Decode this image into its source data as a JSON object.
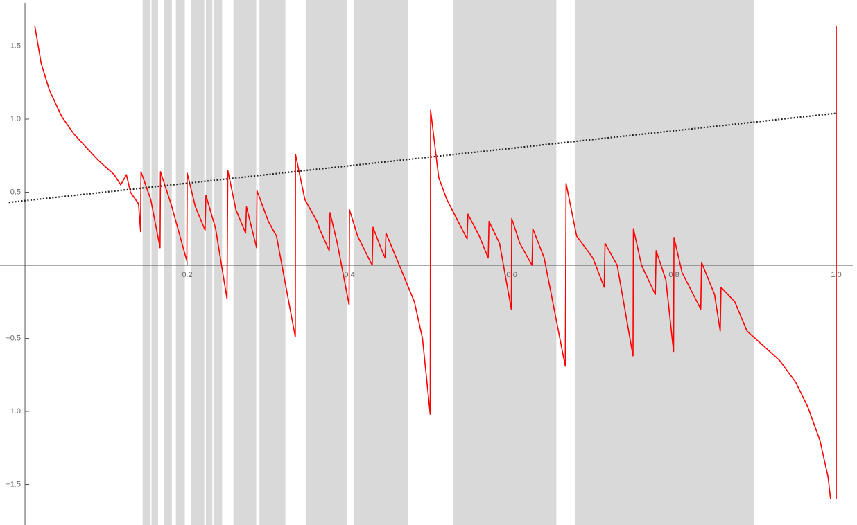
{
  "chart_data": {
    "type": "line",
    "xlim": [
      -0.0308,
      1.0256
    ],
    "ylim": [
      -1.777,
      1.815
    ],
    "xticks": [
      0.2,
      0.4,
      0.6,
      0.8,
      {
        "value": 1,
        "label": "1.0"
      }
    ],
    "yticks": [
      {
        "value": -1.5,
        "label": "−1.5"
      },
      {
        "value": -1,
        "label": "−1.0"
      },
      {
        "value": -0.5,
        "label": "−0.5"
      },
      0.5,
      {
        "value": 1,
        "label": "1.0"
      },
      1.5
    ],
    "band_color": "#d9d9d9",
    "bands": [
      [
        0.145,
        0.154
      ],
      [
        0.156,
        0.164
      ],
      [
        0.171,
        0.181
      ],
      [
        0.186,
        0.197
      ],
      [
        0.205,
        0.221
      ],
      [
        0.223,
        0.231
      ],
      [
        0.233,
        0.243
      ],
      [
        0.257,
        0.285
      ],
      [
        0.289,
        0.321
      ],
      [
        0.346,
        0.397
      ],
      [
        0.405,
        0.472
      ],
      [
        0.528,
        0.655
      ],
      [
        0.678,
        0.899
      ]
    ],
    "series": [
      {
        "color": "#ff0000",
        "style": "solid",
        "x": [
          0.012,
          0.02,
          0.03,
          0.045,
          0.06,
          0.07,
          0.08,
          0.09,
          0.1,
          0.11,
          0.118,
          0.125,
          0.13,
          0.14,
          0.1425,
          0.143,
          0.155,
          0.1665,
          0.167,
          0.18,
          0.1995,
          0.2,
          0.21,
          0.222,
          0.223,
          0.235,
          0.249,
          0.25,
          0.26,
          0.272,
          0.273,
          0.2855,
          0.286,
          0.3,
          0.31,
          0.3332,
          0.3334,
          0.345,
          0.36,
          0.363,
          0.375,
          0.376,
          0.385,
          0.3995,
          0.4,
          0.41,
          0.428,
          0.429,
          0.44,
          0.444,
          0.445,
          0.46,
          0.48,
          0.49,
          0.4995,
          0.5,
          0.51,
          0.52,
          0.545,
          0.546,
          0.56,
          0.571,
          0.572,
          0.585,
          0.5995,
          0.6,
          0.61,
          0.625,
          0.626,
          0.64,
          0.666,
          0.667,
          0.68,
          0.7,
          0.714,
          0.715,
          0.73,
          0.7495,
          0.75,
          0.76,
          0.777,
          0.778,
          0.79,
          0.7995,
          0.8,
          0.81,
          0.833,
          0.834,
          0.85,
          0.857,
          0.858,
          0.875,
          0.89,
          0.91,
          0.93,
          0.95,
          0.965,
          0.98,
          0.99,
          0.993,
          0.996,
          1.0,
          1.0
        ],
        "values": [
          1.64,
          1.38,
          1.2,
          1.02,
          0.9,
          0.84,
          0.78,
          0.72,
          0.67,
          0.62,
          0.55,
          0.62,
          0.5,
          0.42,
          0.23,
          0.64,
          0.45,
          0.12,
          0.64,
          0.42,
          0.03,
          0.63,
          0.4,
          0.24,
          0.48,
          0.25,
          -0.23,
          0.65,
          0.38,
          0.22,
          0.4,
          0.12,
          0.51,
          0.3,
          0.2,
          -0.49,
          0.76,
          0.45,
          0.3,
          0.25,
          0.1,
          0.36,
          0.15,
          -0.27,
          0.38,
          0.2,
          0.0,
          0.26,
          0.1,
          0.05,
          0.22,
          0.02,
          -0.25,
          -0.5,
          -1.02,
          1.06,
          0.6,
          0.45,
          0.18,
          0.35,
          0.2,
          0.05,
          0.3,
          0.15,
          -0.3,
          0.32,
          0.15,
          0.0,
          0.25,
          0.05,
          -0.69,
          0.56,
          0.2,
          0.05,
          -0.15,
          0.15,
          0.0,
          -0.62,
          0.25,
          0.0,
          -0.2,
          0.1,
          -0.1,
          -0.59,
          0.19,
          -0.05,
          -0.3,
          0.02,
          -0.2,
          -0.45,
          -0.15,
          -0.25,
          -0.45,
          -0.55,
          -0.65,
          -0.8,
          -0.97,
          -1.2,
          -1.45,
          -1.6,
          null,
          -1.6,
          1.64
        ]
      },
      {
        "color": "#222222",
        "style": "dotted",
        "x": [
          -0.02,
          1.0
        ],
        "values": [
          0.43,
          1.04
        ]
      }
    ]
  }
}
